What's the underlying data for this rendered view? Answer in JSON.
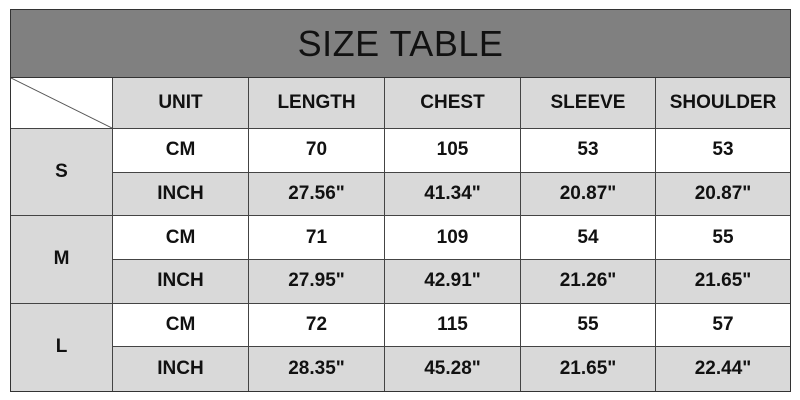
{
  "title": "SIZE TABLE",
  "headers": [
    "UNIT",
    "LENGTH",
    "CHEST",
    "SLEEVE",
    "SHOULDER"
  ],
  "sizes": [
    {
      "size": "S",
      "rows": [
        {
          "unit": "CM",
          "values": [
            "70",
            "105",
            "53",
            "53"
          ]
        },
        {
          "unit": "INCH",
          "values": [
            "27.56\"",
            "41.34\"",
            "20.87\"",
            "20.87\""
          ]
        }
      ]
    },
    {
      "size": "M",
      "rows": [
        {
          "unit": "CM",
          "values": [
            "71",
            "109",
            "54",
            "55"
          ]
        },
        {
          "unit": "INCH",
          "values": [
            "27.95\"",
            "42.91\"",
            "21.26\"",
            "21.65\""
          ]
        }
      ]
    },
    {
      "size": "L",
      "rows": [
        {
          "unit": "CM",
          "values": [
            "72",
            "115",
            "55",
            "57"
          ]
        },
        {
          "unit": "INCH",
          "values": [
            "28.35\"",
            "45.28\"",
            "21.65\"",
            "22.44\""
          ]
        }
      ]
    }
  ],
  "colors": {
    "title_bg": "#808080",
    "shaded": "#d9d9d9",
    "border": "#333333"
  }
}
